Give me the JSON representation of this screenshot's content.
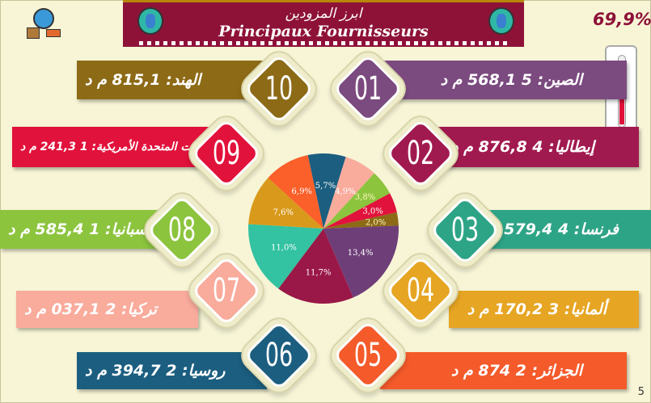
{
  "header": {
    "title_ar": "ابرز المزودين",
    "title_fr": "Principaux Fournisseurs"
  },
  "total_share": "69,9%",
  "thermometer_level": 69.9,
  "page_number": "5",
  "suppliers": [
    {
      "rank": "01",
      "label": "الصين: 5 568,1 م د",
      "color": "#7b4a7f"
    },
    {
      "rank": "02",
      "label": "إيطاليا: 4 876,8 م د",
      "color": "#a11a4f"
    },
    {
      "rank": "03",
      "label": "فرنسا: 4 579,4 م د",
      "color": "#2ea487"
    },
    {
      "rank": "04",
      "label": "ألمانيا: 3 170,2 م د",
      "color": "#e6a522"
    },
    {
      "rank": "05",
      "label": "الجزائر: 2 874 م د",
      "color": "#f45a2a"
    },
    {
      "rank": "06",
      "label": "روسيا: 2 394,7 م د",
      "color": "#1b5e80"
    },
    {
      "rank": "07",
      "label": "تركيا: 2 037,1 م د",
      "color": "#f9ab9c"
    },
    {
      "rank": "08",
      "label": "إسبانيا: 1 585,4 م د",
      "color": "#8cc43e"
    },
    {
      "rank": "09",
      "label": "الولايات المتحدة الأمريكية: 1 241,3 م د",
      "color": "#e1123b"
    },
    {
      "rank": "10",
      "label": "الهند: 815,1 م د",
      "color": "#8c6a16"
    }
  ],
  "chart_data": {
    "type": "pie",
    "slices": [
      {
        "label": "5,7%",
        "value": 5.7,
        "color": "#1b5e80"
      },
      {
        "label": "4,9%",
        "value": 4.9,
        "color": "#f9ab9c"
      },
      {
        "label": "3,8%",
        "value": 3.8,
        "color": "#8cc43e"
      },
      {
        "label": "3,0%",
        "value": 3.0,
        "color": "#e1123b"
      },
      {
        "label": "2,0%",
        "value": 2.0,
        "color": "#8c6a16"
      },
      {
        "label": "13,4%",
        "value": 13.4,
        "color": "#6e3e78"
      },
      {
        "label": "11,7%",
        "value": 11.7,
        "color": "#9a1848"
      },
      {
        "label": "11,0%",
        "value": 11.0,
        "color": "#33c2a2"
      },
      {
        "label": "7,6%",
        "value": 7.6,
        "color": "#d99a1c"
      },
      {
        "label": "6,9%",
        "value": 6.9,
        "color": "#fb5f2a"
      }
    ]
  }
}
